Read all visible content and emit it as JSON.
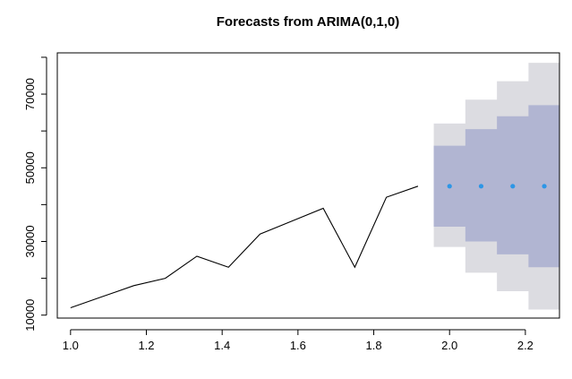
{
  "chart_data": {
    "type": "line",
    "title": "Forecasts from ARIMA(0,1,0)",
    "xlabel": "",
    "ylabel": "",
    "xlim": [
      0.965,
      2.29
    ],
    "ylim": [
      9200,
      81200
    ],
    "x_ticks": [
      1.0,
      1.2,
      1.4,
      1.6,
      1.8,
      2.0,
      2.2
    ],
    "x_tick_labels": [
      "1.0",
      "1.2",
      "1.4",
      "1.6",
      "1.8",
      "2.0",
      "2.2"
    ],
    "y_ticks": [
      10000,
      20000,
      30000,
      40000,
      50000,
      60000,
      70000,
      80000
    ],
    "y_tick_labels": [
      "10000",
      "",
      "30000",
      "",
      "50000",
      "",
      "70000",
      ""
    ],
    "grid": false,
    "legend": "none",
    "history": {
      "x": [
        1.0,
        1.0833,
        1.1667,
        1.25,
        1.3333,
        1.4167,
        1.5,
        1.5833,
        1.6667,
        1.75,
        1.8333,
        1.9167
      ],
      "y": [
        12000,
        15000,
        18000,
        20000,
        26000,
        23000,
        32000,
        35500,
        39000,
        23000,
        42000,
        45000
      ]
    },
    "forecast": {
      "x": [
        2.0,
        2.0833,
        2.1667,
        2.25
      ],
      "x_start": [
        1.9583,
        2.0417,
        2.125,
        2.2083
      ],
      "x_end": [
        2.0417,
        2.125,
        2.2083,
        2.2917
      ],
      "mean": [
        45000,
        45000,
        45000,
        45000
      ],
      "lo80": [
        34000,
        30000,
        26500,
        23000
      ],
      "hi80": [
        56000,
        60500,
        64000,
        67000
      ],
      "lo95": [
        28500,
        21500,
        16500,
        11500
      ],
      "hi95": [
        62000,
        68500,
        73500,
        78500
      ]
    },
    "colors": {
      "line": "#000000",
      "point": "#2d96e6",
      "band80": "#b1b5d2",
      "band95": "#dcdce1"
    }
  }
}
